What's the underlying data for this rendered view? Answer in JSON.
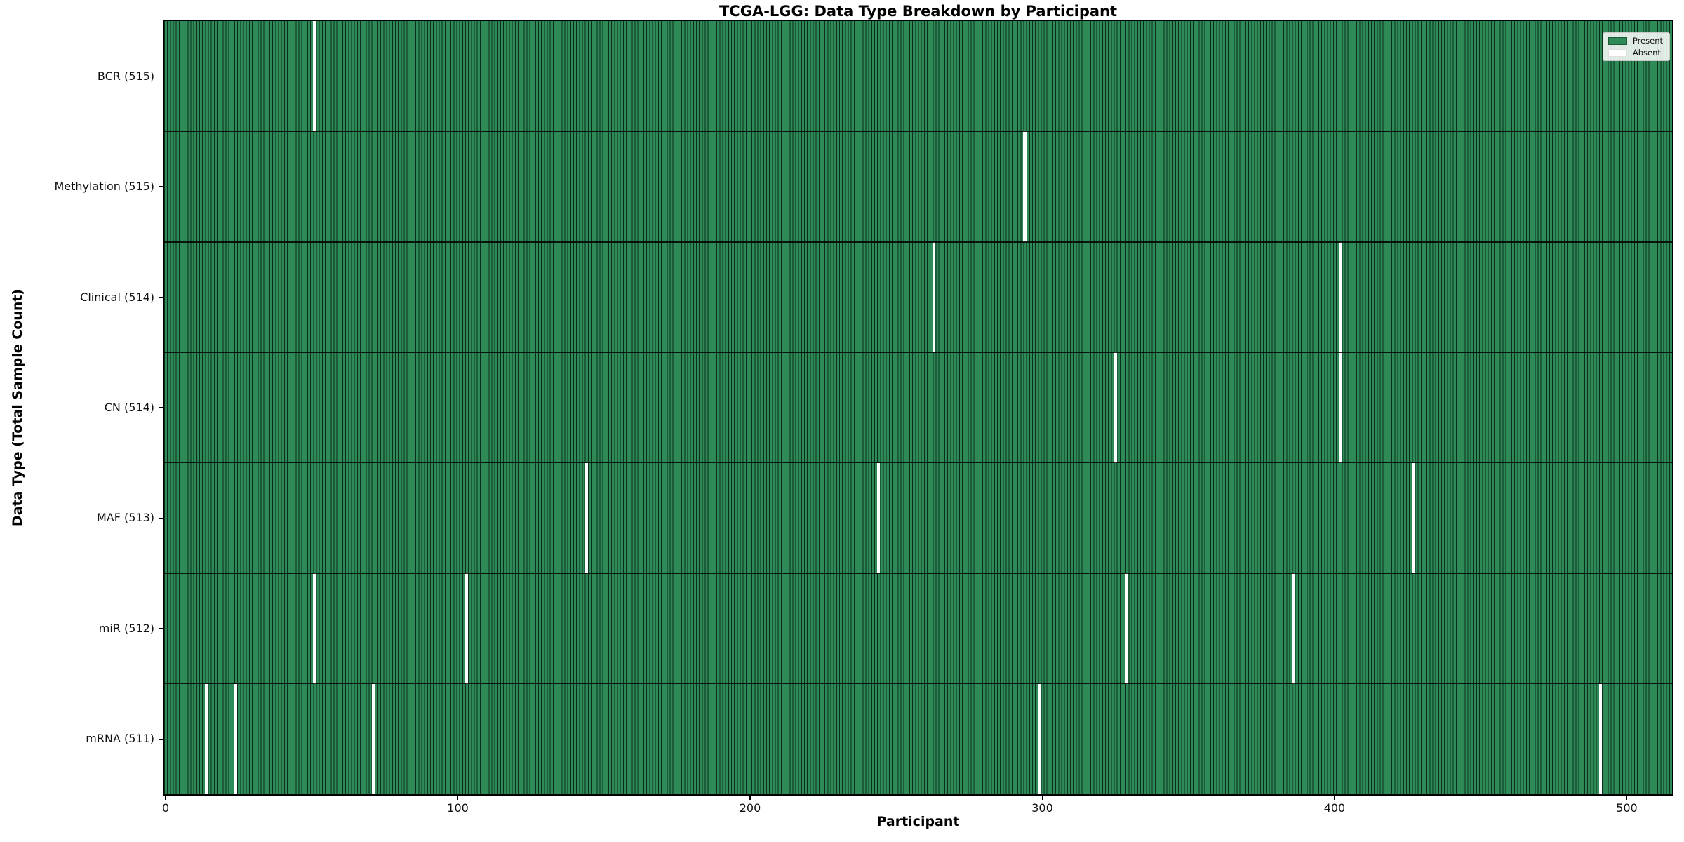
{
  "chart_data": {
    "type": "heatmap",
    "title": "TCGA-LGG: Data Type Breakdown by Participant",
    "xlabel": "Participant",
    "ylabel": "Data Type (Total Sample Count)",
    "x_ticks": [
      0,
      100,
      200,
      300,
      400,
      500
    ],
    "x_range": [
      0,
      515
    ],
    "n_participants": 516,
    "grid": false,
    "colors": {
      "present": "#2e8b57",
      "absent": "#ffffff",
      "bar_edge": "#0c2d1b",
      "row_separator": "#000000"
    },
    "legend": {
      "position": "upper right",
      "items": [
        {
          "label": "Present",
          "color": "#2e8b57"
        },
        {
          "label": "Absent",
          "color": "#ffffff"
        }
      ]
    },
    "rows": [
      {
        "label": "BCR (515)",
        "data_type": "BCR",
        "present_count": 515,
        "absent_participants": [
          51
        ]
      },
      {
        "label": "Methylation (515)",
        "data_type": "Methylation",
        "present_count": 515,
        "absent_participants": [
          294
        ]
      },
      {
        "label": "Clinical (514)",
        "data_type": "Clinical",
        "present_count": 514,
        "absent_participants": [
          263,
          402
        ]
      },
      {
        "label": "CN (514)",
        "data_type": "CN",
        "present_count": 514,
        "absent_participants": [
          325,
          402
        ]
      },
      {
        "label": "MAF (513)",
        "data_type": "MAF",
        "present_count": 513,
        "absent_participants": [
          144,
          244,
          427
        ]
      },
      {
        "label": "miR (512)",
        "data_type": "miR",
        "present_count": 512,
        "absent_participants": [
          51,
          103,
          329,
          386
        ]
      },
      {
        "label": "mRNA (511)",
        "data_type": "mRNA",
        "present_count": 511,
        "absent_participants": [
          14,
          24,
          71,
          299,
          491
        ]
      }
    ]
  }
}
